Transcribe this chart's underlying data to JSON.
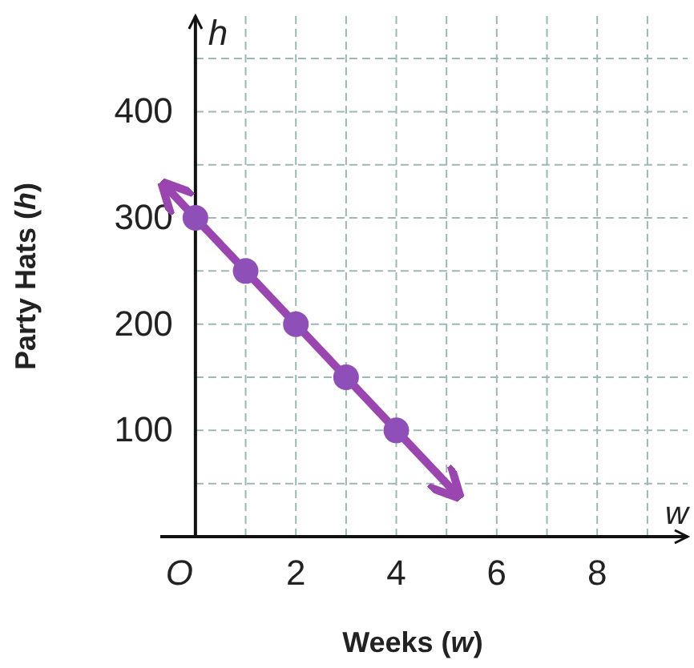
{
  "chart_data": {
    "type": "scatter",
    "xlabel": "Weeks (w)",
    "ylabel": "Party Hats (h)",
    "annotations": [
      "h",
      "w"
    ],
    "xlim": [
      -0.7,
      9.8
    ],
    "ylim": [
      0,
      490
    ],
    "xticks": [
      {
        "value": 0,
        "label": "O"
      },
      {
        "value": 1,
        "label": null
      },
      2,
      {
        "value": 3,
        "label": null
      },
      4,
      {
        "value": 5,
        "label": null
      },
      6,
      {
        "value": 7,
        "label": null
      },
      8,
      {
        "value": 9,
        "label": null
      }
    ],
    "yticks": [
      {
        "value": 50,
        "label": null
      },
      100,
      {
        "value": 150,
        "label": null
      },
      200,
      {
        "value": 250,
        "label": null
      },
      300,
      {
        "value": 350,
        "label": null
      },
      400,
      {
        "value": 450,
        "label": null
      }
    ],
    "grid": true,
    "marker": "circle",
    "series": [
      {
        "type": "line",
        "color": "#9a45b0",
        "x": [
          -0.6,
          5.2
        ],
        "values": [
          330,
          40
        ],
        "line_style": "solid",
        "marker": "none"
      },
      {
        "color": "#8e4fb8",
        "x": [
          0,
          1,
          2,
          3,
          4
        ],
        "values": [
          300,
          250,
          200,
          150,
          100
        ]
      }
    ]
  }
}
